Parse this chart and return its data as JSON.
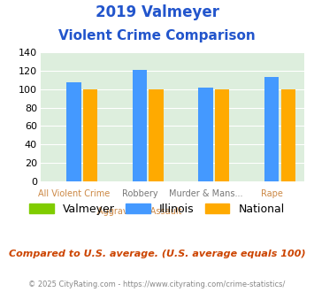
{
  "title_line1": "2019 Valmeyer",
  "title_line2": "Violent Crime Comparison",
  "cat_labels_top": [
    "",
    "Robbery",
    "Murder & Mans...",
    ""
  ],
  "cat_labels_bot": [
    "All Violent Crime",
    "Aggravated Assault",
    "",
    "Rape"
  ],
  "valmeyer": [
    0,
    0,
    0,
    0
  ],
  "illinois": [
    108,
    121,
    102,
    113
  ],
  "national": [
    100,
    100,
    100,
    100
  ],
  "colors": {
    "valmeyer": "#80cc00",
    "illinois": "#4499ff",
    "national": "#ffaa00"
  },
  "ylim": [
    0,
    140
  ],
  "yticks": [
    0,
    20,
    40,
    60,
    80,
    100,
    120,
    140
  ],
  "bg_color": "#ddeedd",
  "title_color": "#2255cc",
  "footer_text": "Compared to U.S. average. (U.S. average equals 100)",
  "footer_color": "#cc4400",
  "copyright_text": "© 2025 CityRating.com - https://www.cityrating.com/crime-statistics/",
  "copyright_color": "#888888"
}
